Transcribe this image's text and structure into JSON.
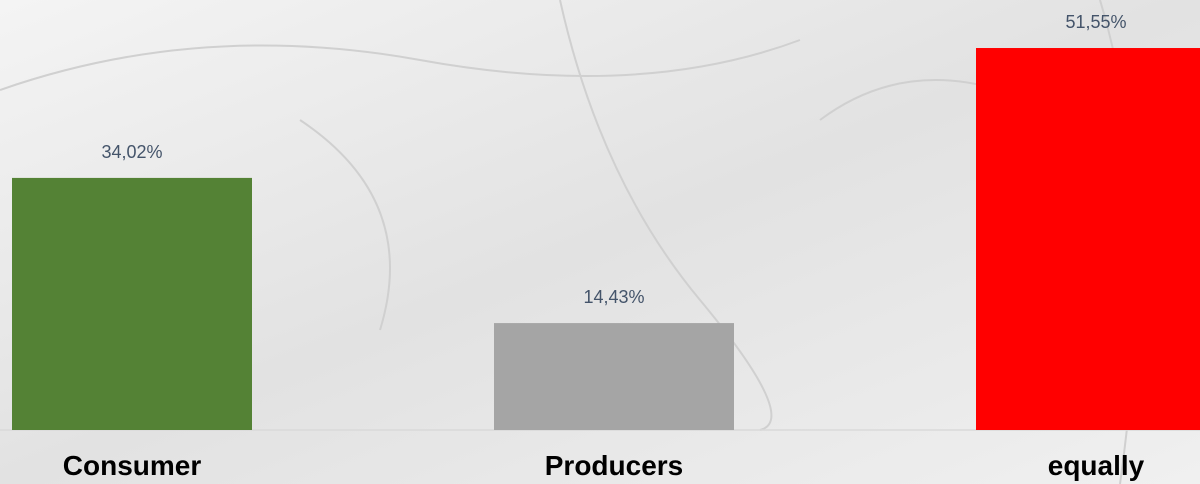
{
  "chart_data": {
    "type": "bar",
    "categories": [
      "Consumer",
      "Producers",
      "equally"
    ],
    "values": [
      34.02,
      14.43,
      51.55
    ],
    "value_labels": [
      "34,02%",
      "14,43%",
      "51,55%"
    ],
    "colors": [
      "#548235",
      "#a5a5a5",
      "#ff0000"
    ]
  }
}
